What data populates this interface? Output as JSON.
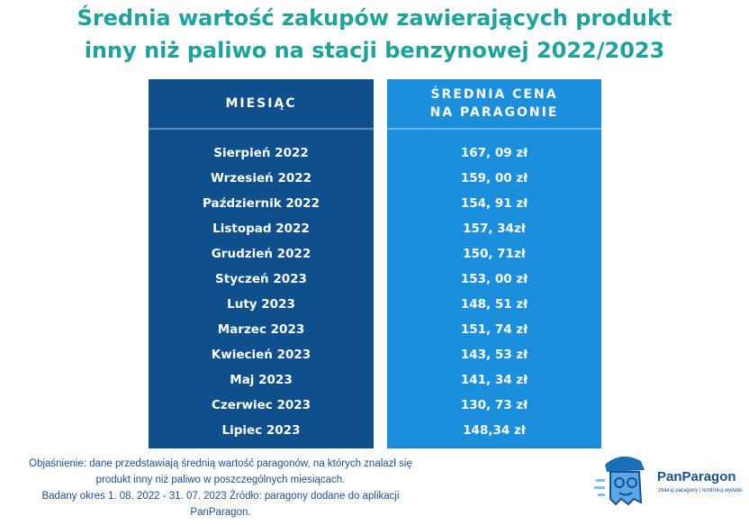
{
  "header": {
    "title_lines": [
      "Średnia wartość zakupów zawierających produkt",
      "inny niż paliwo na stacji benzynowej 2022/2023"
    ]
  },
  "table": {
    "columns": [
      "MIESIĄC",
      "ŚREDNIA CENA NA PARAGONIE"
    ],
    "rows": [
      [
        "Sierpień 2022",
        "167, 09 zł"
      ],
      [
        "Wrzesień 2022",
        "159, 00 zł"
      ],
      [
        "Październik 2022",
        "154, 91 zł"
      ],
      [
        "Listopad 2022",
        "157, 34zł"
      ],
      [
        "Grudzień 2022",
        "150, 71zł"
      ],
      [
        "Styczeń 2023",
        "153, 00 zł"
      ],
      [
        "Luty 2023",
        "148, 51 zł"
      ],
      [
        "Marzec 2023",
        "151, 74 zł"
      ],
      [
        "Kwiecień 2023",
        "143, 53 zł"
      ],
      [
        "Maj 2023",
        "141, 34 zł"
      ],
      [
        "Czerwiec 2023",
        "130, 73 zł"
      ],
      [
        "Lipiec 2023",
        "148,34 zł"
      ]
    ]
  },
  "footnote": {
    "lines": [
      "Objaśnienie: dane przedstawiają średnią wartość paragonów, na których znalazł się",
      "produkt inny niż paliwo w poszczególnych miesiącach.",
      "Badany okres 1. 08. 2022 - 31. 07. 2023 Źródło: paragony dodane do aplikacji",
      "PanParagon."
    ]
  },
  "logo": {
    "name": "PanParagon",
    "tagline": "zbieraj paragony | kontroluj wydatki"
  }
}
